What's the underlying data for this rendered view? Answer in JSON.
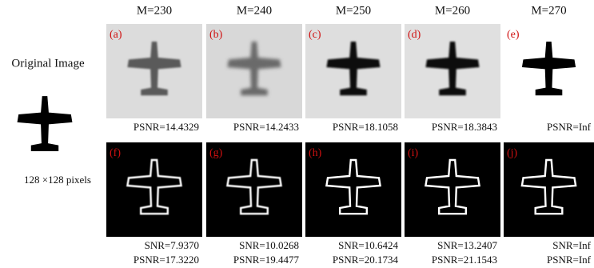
{
  "original": {
    "title": "Original Image",
    "size": "128 ×128 pixels"
  },
  "columns": [
    {
      "header": "M=230",
      "panels": [
        {
          "label": "(a)",
          "metrics": [
            "PSNR=14.4329"
          ]
        },
        {
          "label": "(f)",
          "metrics": [
            "SNR=7.9370",
            "PSNR=17.3220"
          ]
        }
      ]
    },
    {
      "header": "M=240",
      "panels": [
        {
          "label": "(b)",
          "metrics": [
            "PSNR=14.2433"
          ]
        },
        {
          "label": "(g)",
          "metrics": [
            "SNR=10.0268",
            "PSNR=19.4477"
          ]
        }
      ]
    },
    {
      "header": "M=250",
      "panels": [
        {
          "label": "(c)",
          "metrics": [
            "PSNR=18.1058"
          ]
        },
        {
          "label": "(h)",
          "metrics": [
            "SNR=10.6424",
            "PSNR=20.1734"
          ]
        }
      ]
    },
    {
      "header": "M=260",
      "panels": [
        {
          "label": "(d)",
          "metrics": [
            "PSNR=18.3843"
          ]
        },
        {
          "label": "(i)",
          "metrics": [
            "SNR=13.2407",
            "PSNR=21.1543"
          ]
        }
      ]
    },
    {
      "header": "M=270",
      "panels": [
        {
          "label": "(e)",
          "metrics": [
            "PSNR=Inf"
          ]
        },
        {
          "label": "(j)",
          "metrics": [
            "SNR=Inf",
            "PSNR=Inf"
          ]
        }
      ]
    }
  ]
}
